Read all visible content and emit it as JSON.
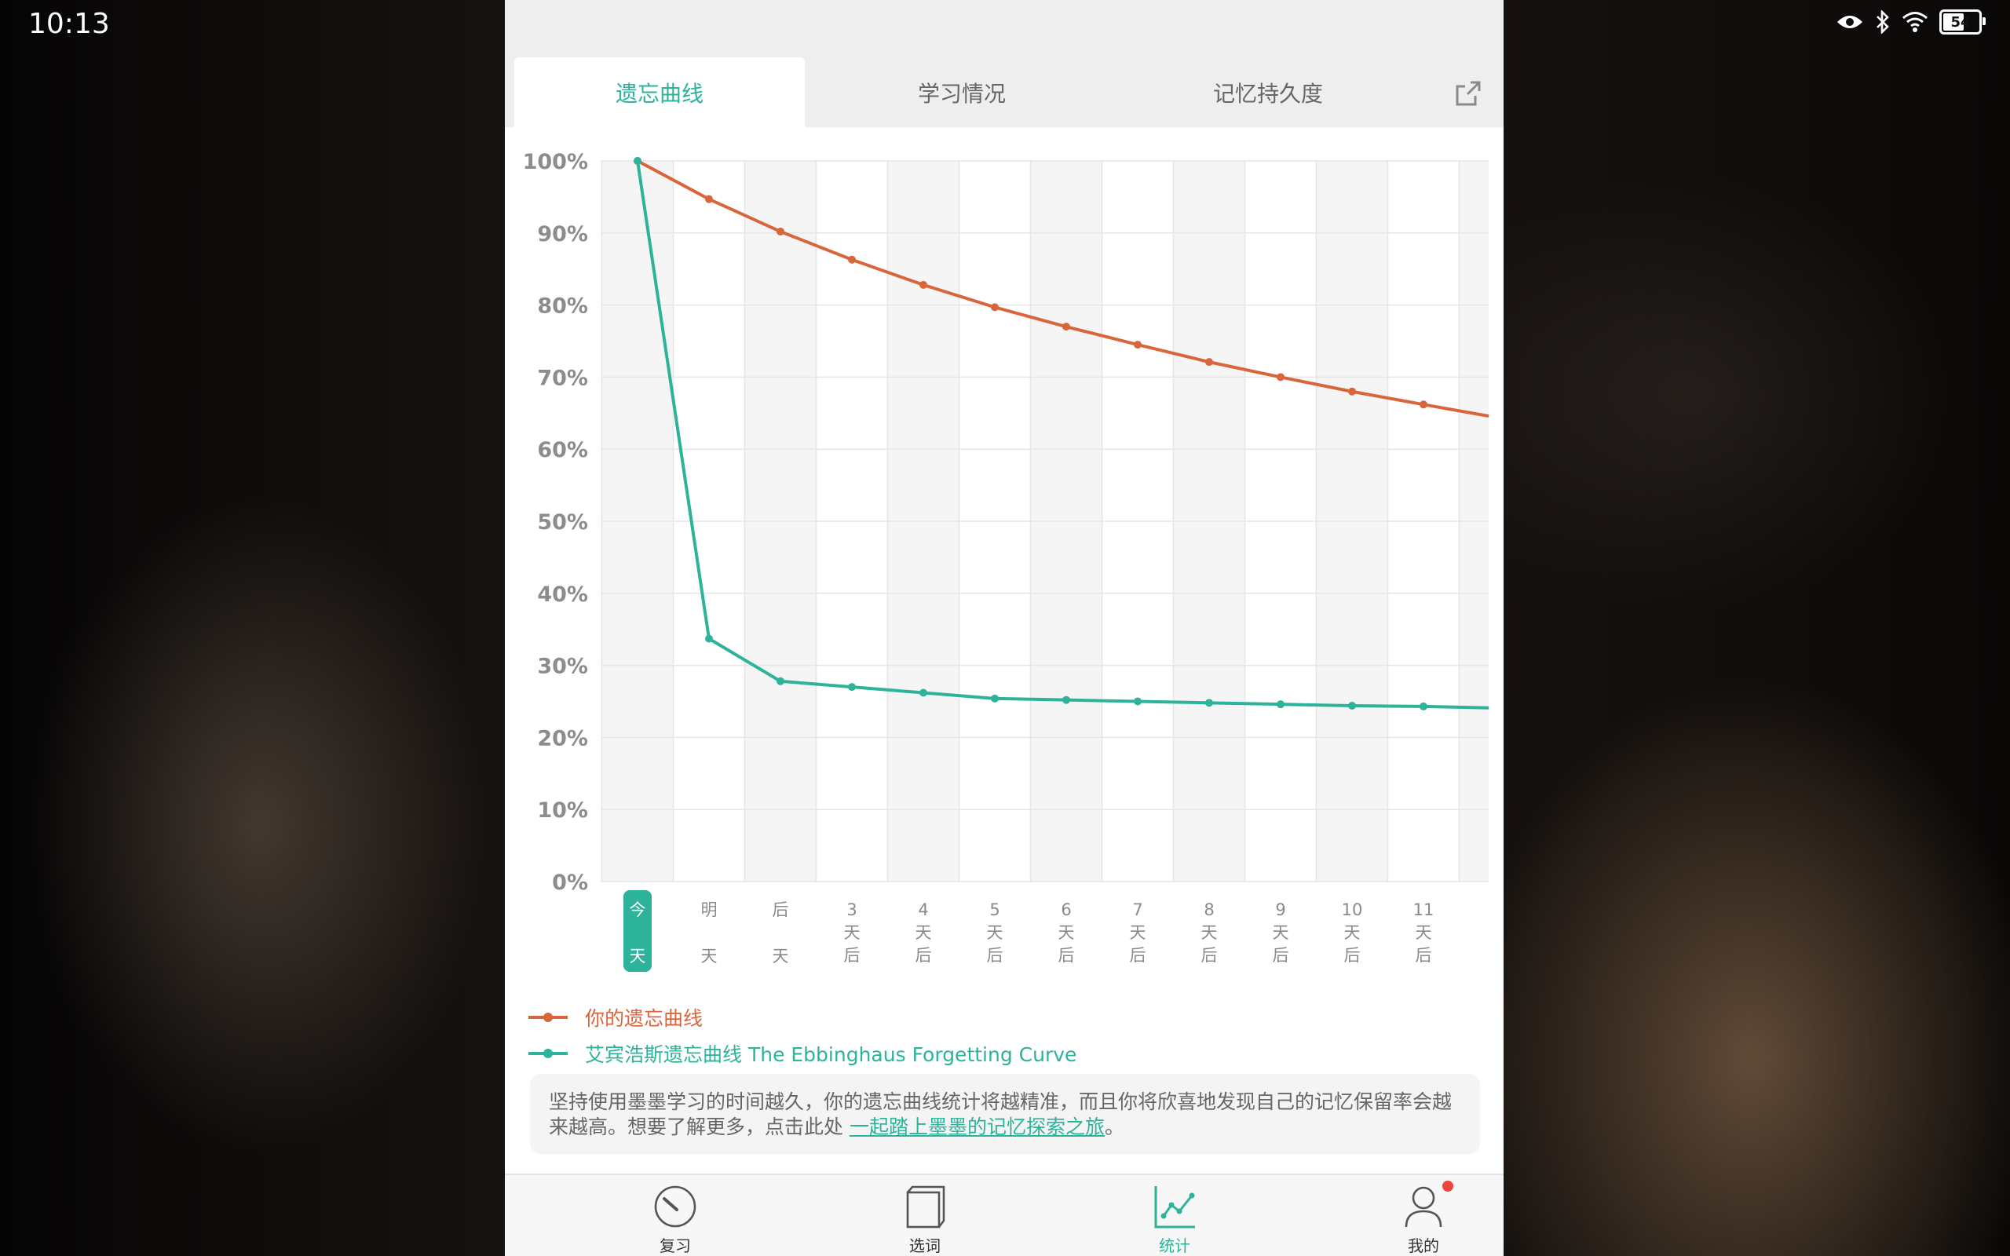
{
  "status_bar": {
    "time": "10:13",
    "battery": "54"
  },
  "tabs": [
    {
      "label": "遗忘曲线",
      "active": true
    },
    {
      "label": "学习情况",
      "active": false
    },
    {
      "label": "记忆持久度",
      "active": false
    }
  ],
  "chart_data": {
    "type": "line",
    "categories": [
      [
        "今",
        "天"
      ],
      [
        "明",
        "天"
      ],
      [
        "后",
        "天"
      ],
      [
        "3",
        "天",
        "后"
      ],
      [
        "4",
        "天",
        "后"
      ],
      [
        "5",
        "天",
        "后"
      ],
      [
        "6",
        "天",
        "后"
      ],
      [
        "7",
        "天",
        "后"
      ],
      [
        "8",
        "天",
        "后"
      ],
      [
        "9",
        "天",
        "后"
      ],
      [
        "10",
        "天",
        "后"
      ],
      [
        "11",
        "天",
        "后"
      ]
    ],
    "y_ticks": [
      "100%",
      "90%",
      "80%",
      "70%",
      "60%",
      "50%",
      "40%",
      "30%",
      "20%",
      "10%",
      "0%"
    ],
    "ylim": [
      0,
      100
    ],
    "series": [
      {
        "name": "你的遗忘曲线",
        "color": "#d9653b",
        "values": [
          100,
          94.7,
          90.2,
          86.3,
          82.8,
          79.7,
          77.0,
          74.5,
          72.1,
          70.0,
          68.0,
          66.2
        ],
        "end_value": 64.6
      },
      {
        "name": "艾宾浩斯遗忘曲线 The Ebbinghaus Forgetting Curve",
        "color": "#2db39a",
        "values": [
          100,
          33.7,
          27.8,
          27.0,
          26.2,
          25.4,
          25.2,
          25.0,
          24.8,
          24.6,
          24.4,
          24.3
        ],
        "end_value": 24.1
      }
    ]
  },
  "note": {
    "text": "坚持使用墨墨学习的时间越久，你的遗忘曲线统计将越精准，而且你将欣喜地发现自己的记忆保留率会越来越高。想要了解更多，点击此处 ",
    "link": "一起踏上墨墨的记忆探索之旅",
    "tail": "。"
  },
  "bottom_nav": [
    {
      "label": "复习",
      "icon": "review-dial-icon"
    },
    {
      "label": "选词",
      "icon": "book-icon"
    },
    {
      "label": "统计",
      "icon": "chart-icon",
      "active": true
    },
    {
      "label": "我的",
      "icon": "profile-icon",
      "badge": true
    }
  ],
  "colors": {
    "accent": "#2db39a",
    "user_curve": "#d9653b"
  }
}
